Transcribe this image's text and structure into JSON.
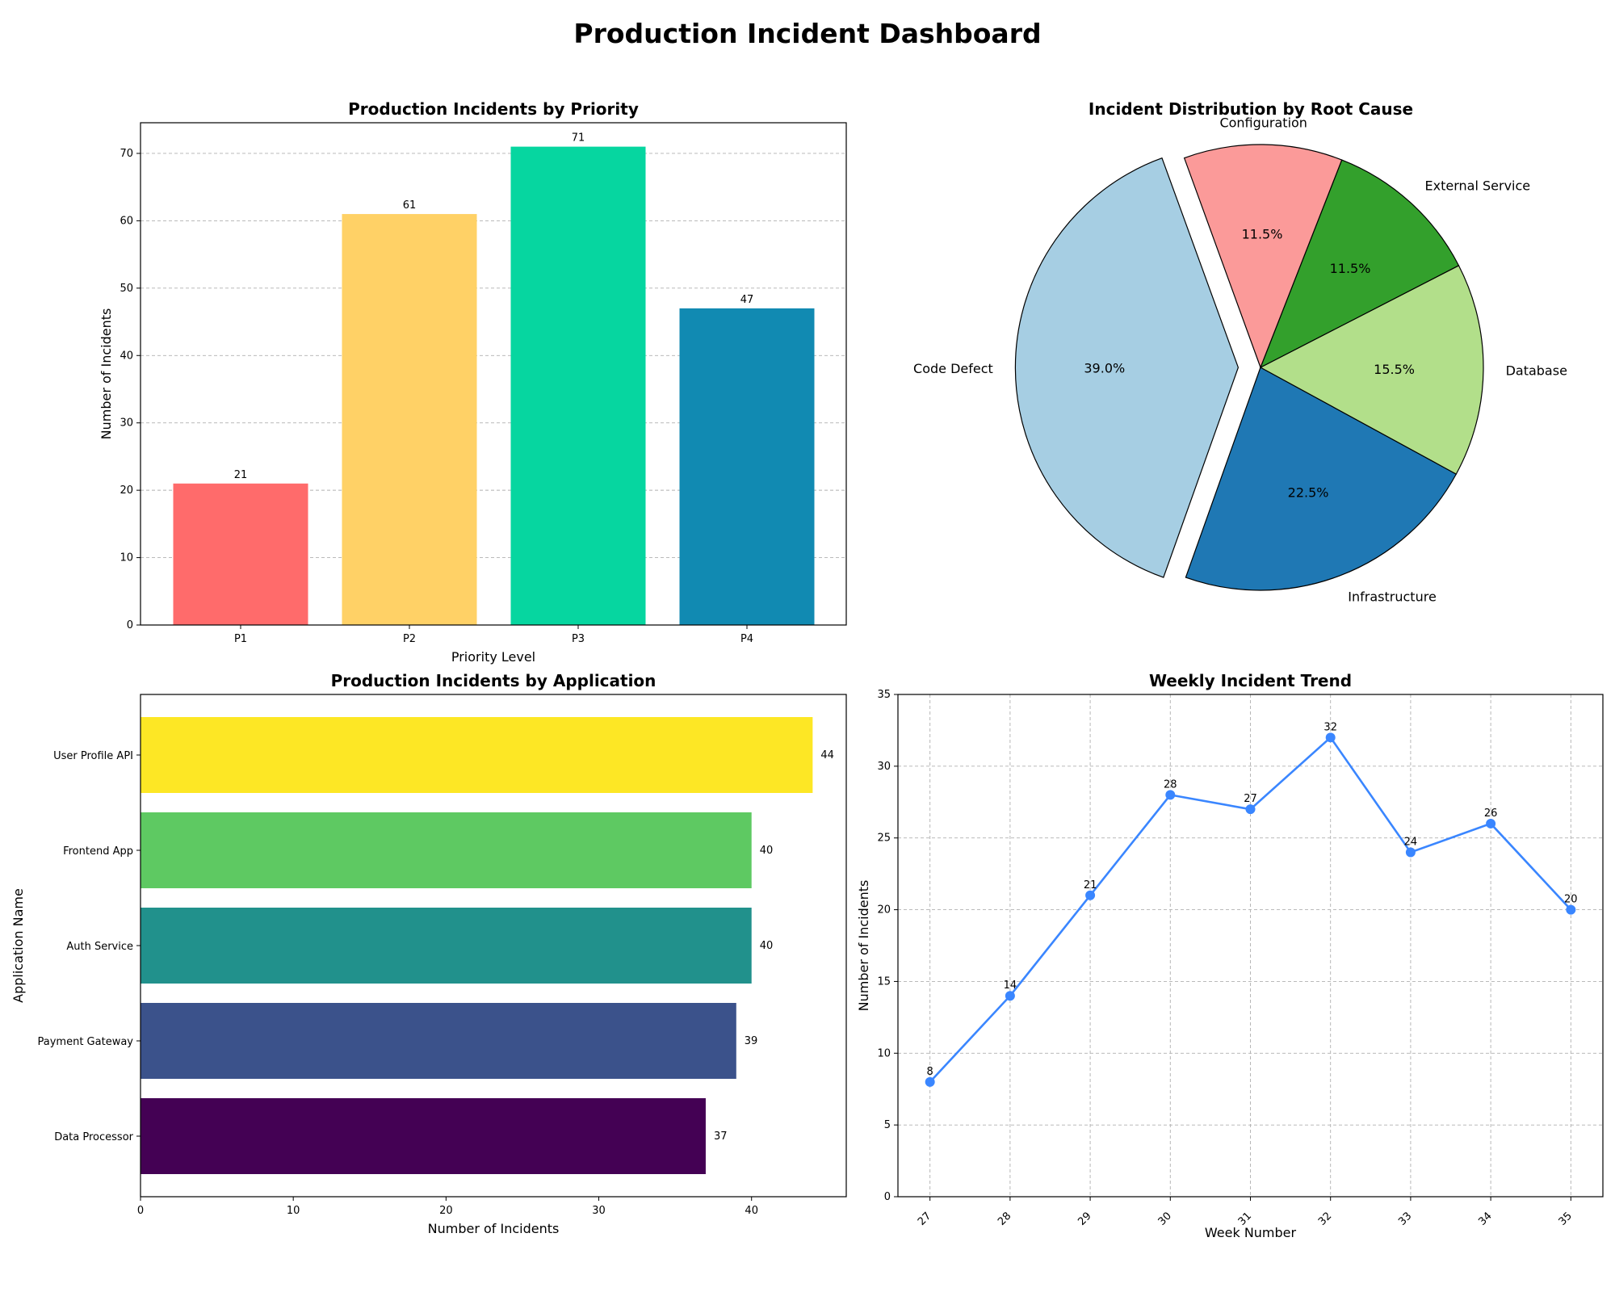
{
  "dashboard": {
    "title": "Production Incident Dashboard"
  },
  "chart_data": [
    {
      "type": "bar",
      "title": "Production Incidents by Priority",
      "xlabel": "Priority Level",
      "ylabel": "Number of Incidents",
      "categories": [
        "P1",
        "P2",
        "P3",
        "P4"
      ],
      "values": [
        21,
        61,
        71,
        47
      ],
      "colors": [
        "#ff6b6b",
        "#ffd166",
        "#06d6a0",
        "#118ab2"
      ],
      "ylim": [
        0,
        74.55
      ],
      "yticks": [
        0,
        10,
        20,
        30,
        40,
        50,
        60,
        70
      ],
      "grid": "y-dashed",
      "data_labels": true
    },
    {
      "type": "pie",
      "title": "Incident Distribution by Root Cause",
      "labels": [
        "Code Defect",
        "Infrastructure",
        "Database",
        "External Service",
        "Configuration"
      ],
      "values": [
        39.0,
        22.5,
        15.5,
        11.5,
        11.5
      ],
      "pct_labels": [
        "39.0%",
        "22.5%",
        "15.5%",
        "11.5%",
        "11.5%"
      ],
      "colors": [
        "#a6cee3",
        "#1f78b4",
        "#b2df8a",
        "#33a02c",
        "#fb9a99"
      ],
      "exploded": [
        "Code Defect"
      ]
    },
    {
      "type": "bar",
      "orientation": "horizontal",
      "title": "Production Incidents by Application",
      "xlabel": "Number of Incidents",
      "ylabel": "Application Name",
      "categories": [
        "User Profile API",
        "Frontend App",
        "Auth Service",
        "Payment Gateway",
        "Data Processor"
      ],
      "values": [
        44,
        40,
        40,
        39,
        37
      ],
      "colors": [
        "#fde725",
        "#5ec962",
        "#21918c",
        "#3b528b",
        "#440154"
      ],
      "xlim": [
        0,
        46.2
      ],
      "xticks": [
        0,
        10,
        20,
        30,
        40
      ],
      "data_labels": true
    },
    {
      "type": "line",
      "title": "Weekly Incident Trend",
      "xlabel": "Week Number",
      "ylabel": "Number of Incidents",
      "x": [
        27,
        28,
        29,
        30,
        31,
        32,
        33,
        34,
        35
      ],
      "series": [
        {
          "values": [
            8,
            14,
            21,
            28,
            27,
            32,
            24,
            26,
            20
          ],
          "color": "#3a86ff"
        }
      ],
      "ylim": [
        0,
        35
      ],
      "yticks": [
        0,
        5,
        10,
        15,
        20,
        25,
        30,
        35
      ],
      "grid": "both-dashed",
      "data_labels": true
    }
  ]
}
